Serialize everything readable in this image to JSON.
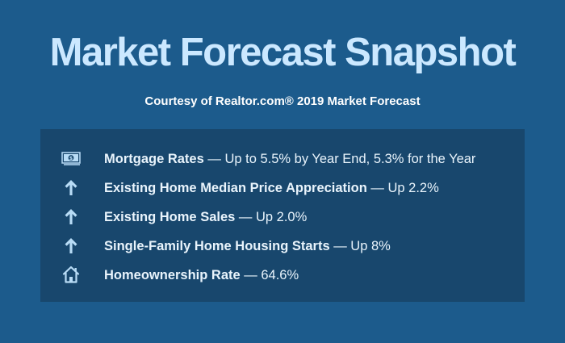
{
  "title": "Market Forecast Snapshot",
  "subtitle": "Courtesy of Realtor.com® 2019 Market Forecast",
  "items": [
    {
      "icon": "money-icon",
      "label": "Mortgage Rates",
      "value": " — Up to 5.5% by Year End, 5.3% for the Year"
    },
    {
      "icon": "arrow-up-icon",
      "label": "Existing Home Median Price Appreciation",
      "value": " — Up 2.2%"
    },
    {
      "icon": "arrow-up-icon",
      "label": "Existing Home Sales",
      "value": " — Up 2.0%"
    },
    {
      "icon": "arrow-up-icon",
      "label": "Single-Family Home Housing Starts",
      "value": " — Up 8%"
    },
    {
      "icon": "house-icon",
      "label": "Homeownership Rate",
      "value": " — 64.6%"
    }
  ],
  "colors": {
    "background": "#1c5b8c",
    "panel": "#18476d",
    "title": "#cbe8ff",
    "icon": "#b8dcf6"
  }
}
